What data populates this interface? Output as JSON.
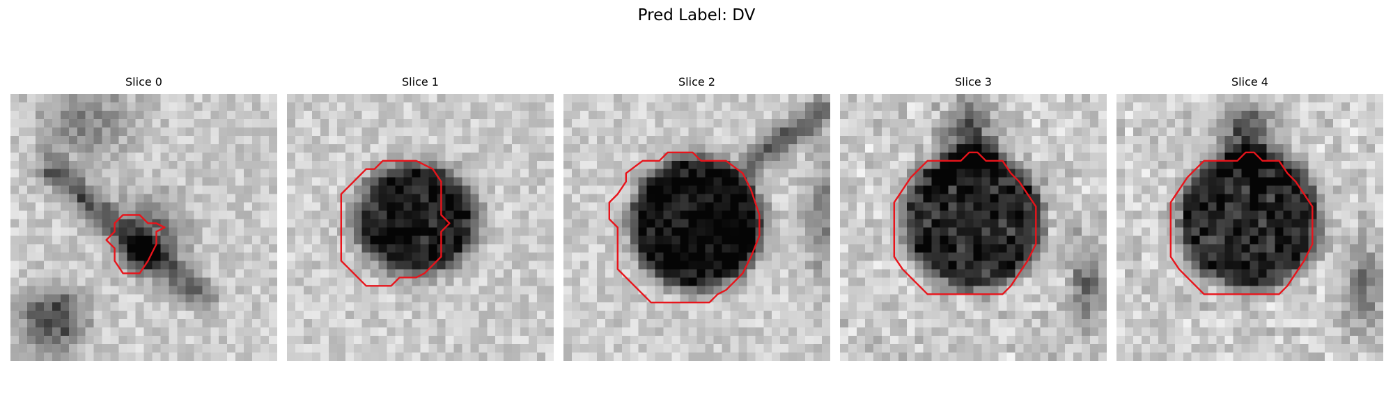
{
  "figure": {
    "title": "Pred Label: DV"
  },
  "panels": [
    {
      "title": "Slice 0",
      "lesion": "small irregular dark spot near center, with dark diagonal streaks at upper-left and lower-left",
      "contour_color": "#e8141b"
    },
    {
      "title": "Slice 1",
      "lesion": "dark rounded blob in center",
      "contour_color": "#e8141b"
    },
    {
      "title": "Slice 2",
      "lesion": "large dark rounded blob with dark band toward upper-right",
      "contour_color": "#e8141b"
    },
    {
      "title": "Slice 3",
      "lesion": "large dark noisy blob with dark protrusion at top",
      "contour_color": "#e8141b"
    },
    {
      "title": "Slice 4",
      "lesion": "large dark noisy blob with dark protrusion at top",
      "contour_color": "#e8141b"
    }
  ],
  "colors": {
    "contour": "#e8141b",
    "background": "#ffffff"
  }
}
